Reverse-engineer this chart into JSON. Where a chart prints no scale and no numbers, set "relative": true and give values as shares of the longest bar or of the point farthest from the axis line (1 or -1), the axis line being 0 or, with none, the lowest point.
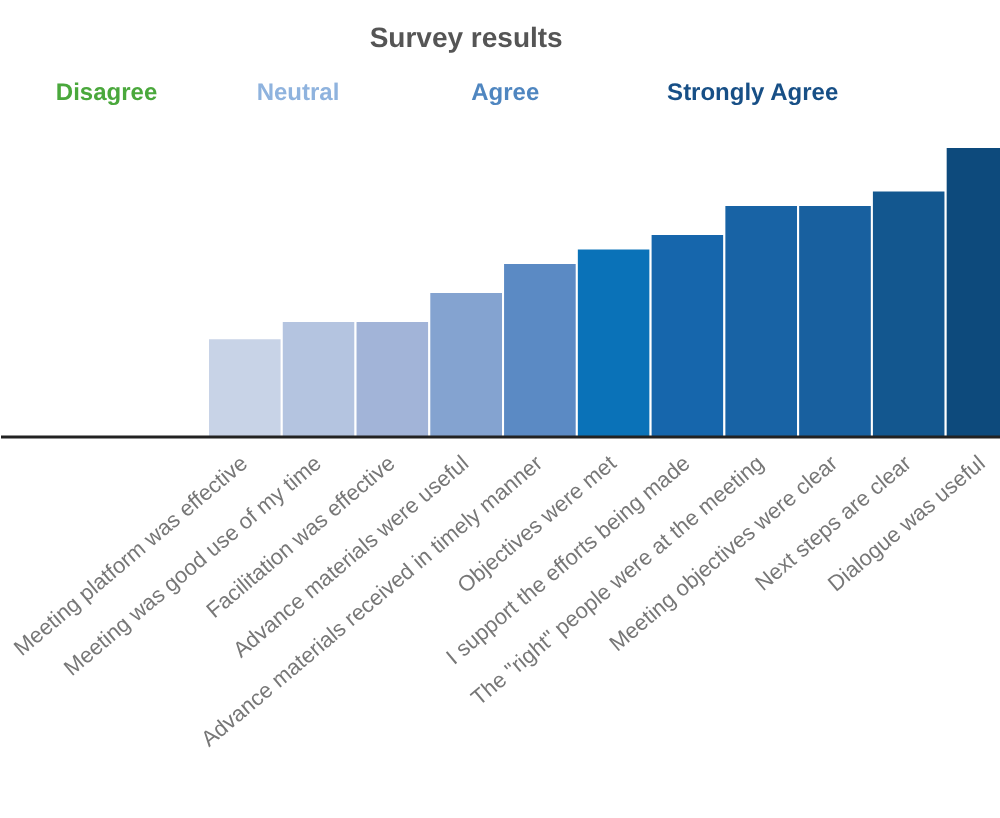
{
  "chart_data": {
    "type": "bar",
    "title": "Survey results",
    "relative": true,
    "categories": [
      "Meeting platform was effective",
      "Meeting was good use of my time",
      "Facilitation was effective",
      "Advance materials were useful",
      "Advance materials received in timely manner",
      "Objectives were met",
      "I support the efforts being made",
      "The \"right\" people were at the meeting",
      "Meeting objectives were clear",
      "Next steps are clear",
      "Dialogue was useful"
    ],
    "values": [
      0.34,
      0.4,
      0.4,
      0.5,
      0.6,
      0.65,
      0.7,
      0.8,
      0.8,
      0.85,
      1
    ],
    "colors": [
      "#c8d3e7",
      "#b4c4e0",
      "#a2b4d8",
      "#84a3d0",
      "#5b8ac4",
      "#0a72b8",
      "#1666ac",
      "#1863a5",
      "#18609f",
      "#13578f",
      "#0d4a7c"
    ],
    "annotations": [
      "Disagree",
      "Neutral",
      "Agree",
      "Strongly Agree"
    ]
  }
}
